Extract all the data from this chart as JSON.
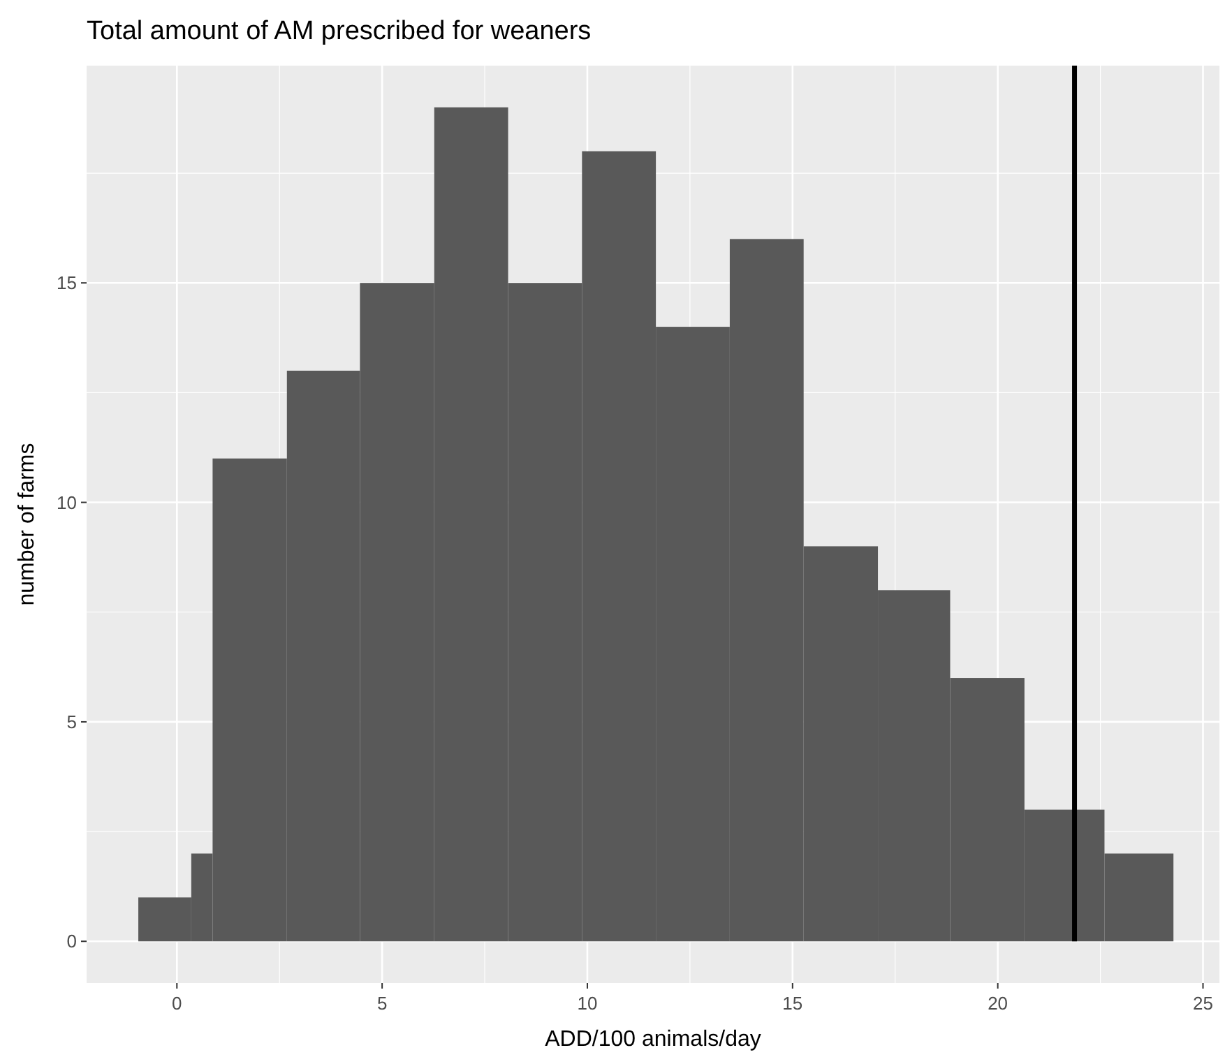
{
  "chart_data": {
    "type": "histogram",
    "title": "Total amount of AM prescribed for weaners",
    "xlabel": "ADD/100 animals/day",
    "ylabel": "number of farms",
    "bins": [
      -0.94,
      0.35,
      0.87,
      2.68,
      4.46,
      6.27,
      8.07,
      9.87,
      11.67,
      13.47,
      15.27,
      17.08,
      18.84,
      20.65,
      22.6,
      24.28
    ],
    "values": [
      1,
      2,
      11,
      13,
      15,
      19,
      15,
      18,
      14,
      16,
      9,
      8,
      6,
      3,
      2
    ],
    "color": "#595959",
    "xlim": [
      -2.2,
      25.4
    ],
    "ylim": [
      -0.95,
      19.95
    ],
    "xticks": [
      0,
      5,
      10,
      15,
      20,
      25
    ],
    "yticks": [
      0,
      5,
      10,
      15
    ],
    "grid": true,
    "ref_lines": [
      {
        "axis": "x",
        "value": 21.87,
        "color": "#000000"
      }
    ]
  }
}
